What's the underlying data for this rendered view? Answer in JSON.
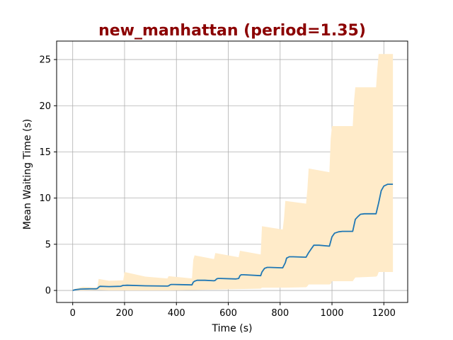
{
  "chart_data": {
    "type": "line",
    "title": "new_manhattan (period=1.35)",
    "title_color": "#8b0000",
    "xlabel": "Time (s)",
    "ylabel": "Mean Waiting Time (s)",
    "xlim": [
      -62,
      1292
    ],
    "ylim": [
      -1.3,
      27.0
    ],
    "xticks": [
      0,
      200,
      400,
      600,
      800,
      1000,
      1200
    ],
    "yticks": [
      0,
      5,
      10,
      15,
      20,
      25
    ],
    "grid": true,
    "line_color": "#1f77b4",
    "band_color": "#ffebc9",
    "series": [
      {
        "x": [
          0,
          10,
          30,
          60,
          90,
          95,
          100,
          105,
          140,
          185,
          190,
          195,
          200,
          210,
          280,
          365,
          370,
          375,
          380,
          390,
          460,
          465,
          470,
          480,
          510,
          545,
          550,
          555,
          560,
          570,
          630,
          640,
          645,
          650,
          660,
          725,
          730,
          740,
          750,
          760,
          810,
          820,
          825,
          835,
          850,
          900,
          910,
          920,
          930,
          950,
          990,
          1000,
          1010,
          1025,
          1040,
          1080,
          1090,
          1100,
          1110,
          1125,
          1170,
          1180,
          1190,
          1200,
          1215,
          1235
        ],
        "y": [
          0.0,
          0.08,
          0.15,
          0.17,
          0.18,
          0.2,
          0.35,
          0.45,
          0.42,
          0.45,
          0.5,
          0.55,
          0.55,
          0.56,
          0.5,
          0.47,
          0.5,
          0.6,
          0.65,
          0.65,
          0.6,
          0.9,
          1.0,
          1.1,
          1.1,
          1.05,
          1.1,
          1.25,
          1.3,
          1.3,
          1.25,
          1.3,
          1.6,
          1.7,
          1.7,
          1.6,
          2.0,
          2.4,
          2.5,
          2.5,
          2.45,
          3.0,
          3.5,
          3.65,
          3.65,
          3.6,
          4.1,
          4.5,
          4.9,
          4.9,
          4.8,
          5.8,
          6.2,
          6.35,
          6.4,
          6.4,
          7.7,
          8.0,
          8.25,
          8.3,
          8.3,
          9.5,
          10.8,
          11.3,
          11.5,
          11.5
        ]
      }
    ],
    "band": {
      "x": [
        0,
        40,
        95,
        100,
        140,
        195,
        200,
        280,
        365,
        370,
        460,
        465,
        470,
        545,
        550,
        640,
        645,
        725,
        730,
        810,
        815,
        820,
        900,
        905,
        910,
        990,
        995,
        1000,
        1080,
        1085,
        1090,
        1170,
        1175,
        1180,
        1235
      ],
      "upper": [
        0.1,
        0.4,
        0.3,
        1.25,
        1.05,
        1.1,
        2.0,
        1.5,
        1.3,
        1.55,
        1.3,
        3.3,
        3.8,
        3.4,
        4.05,
        3.6,
        4.3,
        3.9,
        6.95,
        6.6,
        7.8,
        9.7,
        9.4,
        10.9,
        13.2,
        12.8,
        16.4,
        17.8,
        17.8,
        20.5,
        22.0,
        22.0,
        24.0,
        25.6,
        25.6
      ],
      "lower": [
        0.0,
        0.0,
        0.05,
        0.05,
        0.0,
        0.0,
        0.0,
        0.0,
        0.0,
        0.0,
        0.05,
        0.05,
        0.05,
        0.1,
        0.1,
        0.15,
        0.15,
        0.2,
        0.3,
        0.3,
        0.3,
        0.3,
        0.35,
        0.45,
        0.65,
        0.65,
        0.7,
        1.0,
        1.0,
        1.2,
        1.4,
        1.5,
        1.6,
        2.0,
        2.0
      ]
    }
  }
}
